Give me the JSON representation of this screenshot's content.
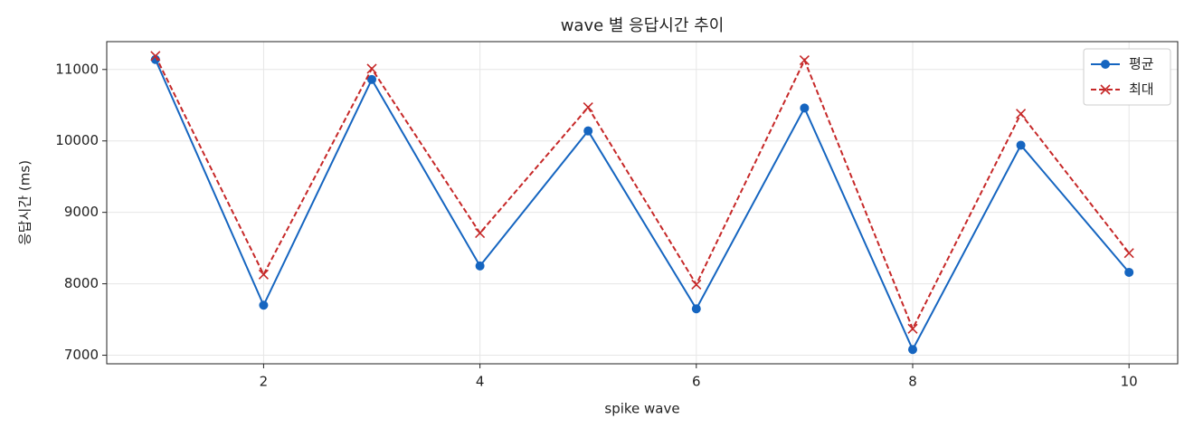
{
  "chart_data": {
    "type": "line",
    "title": "wave 별 응답시간 추이",
    "x_label": "spike wave",
    "y_label": "응답시간 (ms)",
    "x": [
      1,
      2,
      3,
      4,
      5,
      6,
      7,
      8,
      9,
      10
    ],
    "series": [
      {
        "name": "평균",
        "color": "#1565c0",
        "style": "solid",
        "marker": "circle",
        "values": [
          11140,
          7700,
          10860,
          8250,
          10140,
          7650,
          10460,
          7080,
          9940,
          8160
        ]
      },
      {
        "name": "최대",
        "color": "#c62828",
        "style": "dashed",
        "marker": "x",
        "values": [
          11190,
          8130,
          11010,
          8710,
          10470,
          7990,
          11130,
          7370,
          10380,
          8430
        ]
      }
    ],
    "xlim": [
      0.55,
      10.45
    ],
    "ylim": [
      6880,
      11390
    ],
    "xticks": [
      2,
      4,
      6,
      8,
      10
    ],
    "yticks": [
      7000,
      8000,
      9000,
      10000,
      11000
    ],
    "grid": true,
    "legend": "upper right"
  }
}
